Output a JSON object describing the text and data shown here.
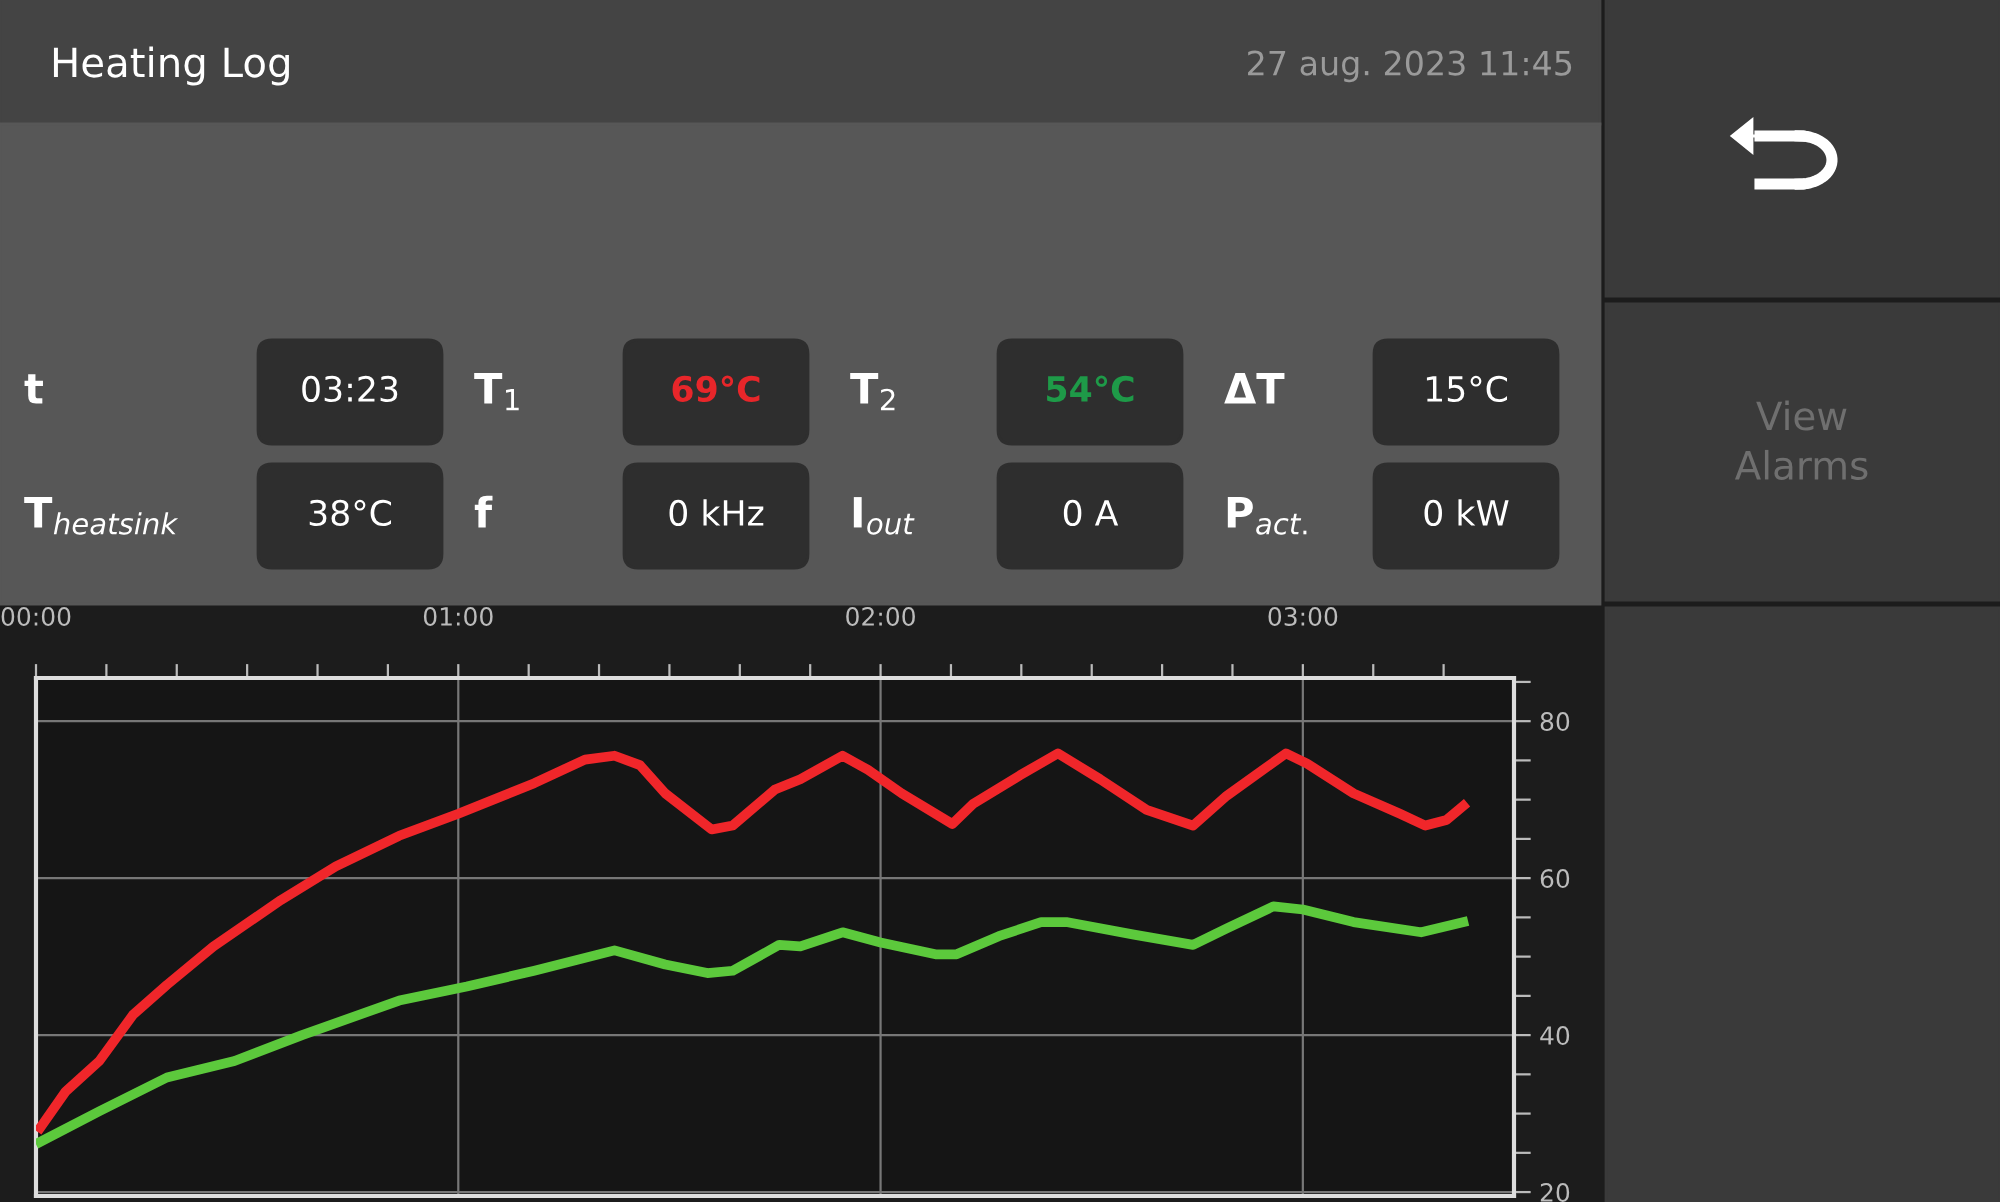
{
  "chart_data": [
    {
      "type": "other",
      "title": "Heating Log",
      "subtitle": "27 aug. 2023 11:45",
      "annotations": [
        "t",
        "03:23",
        "T$_{1}$",
        "69°C",
        "T$_{2}$",
        "54°C",
        "ΔT",
        "15°C",
        "T$_{heatsink}$",
        "38°C",
        "f",
        "0 kHz",
        "I$_{out}$",
        "0 A",
        "P$_{act.}$",
        "0 kW",
        "View Alarms"
      ],
      "colors": [
        "#ffffff",
        "#ffffff",
        "#ffffff",
        "#e8262a",
        "#ffffff",
        "#1e9a48",
        "#ffffff",
        "#ffffff",
        "#ffffff",
        "#ffffff",
        "#ffffff",
        "#ffffff",
        "#ffffff",
        "#ffffff",
        "#ffffff",
        "#ffffff",
        "#6f6f6f"
      ]
    },
    {
      "type": "line",
      "xlim": [
        0,
        3.5
      ],
      "ylim": [
        19.5,
        85.5
      ],
      "grid": true,
      "marker": "none",
      "line_style": "solid",
      "xticks": [
        {
          "value": 0,
          "label": "00:00"
        },
        {
          "value": 0.1667,
          "label": null
        },
        {
          "value": 0.3333,
          "label": null
        },
        {
          "value": 0.5,
          "label": null
        },
        {
          "value": 0.6667,
          "label": null
        },
        {
          "value": 0.8333,
          "label": null
        },
        {
          "value": 1,
          "label": "01:00"
        },
        {
          "value": 1.1667,
          "label": null
        },
        {
          "value": 1.3333,
          "label": null
        },
        {
          "value": 1.5,
          "label": null
        },
        {
          "value": 1.6667,
          "label": null
        },
        {
          "value": 1.8333,
          "label": null
        },
        {
          "value": 2,
          "label": "02:00"
        },
        {
          "value": 2.1667,
          "label": null
        },
        {
          "value": 2.3333,
          "label": null
        },
        {
          "value": 2.5,
          "label": null
        },
        {
          "value": 2.6667,
          "label": null
        },
        {
          "value": 2.8333,
          "label": null
        },
        {
          "value": 3,
          "label": "03:00"
        },
        {
          "value": 3.1667,
          "label": null
        },
        {
          "value": 3.3333,
          "label": null
        }
      ],
      "yticks": [
        20,
        {
          "value": 25,
          "label": null
        },
        {
          "value": 30,
          "label": null
        },
        {
          "value": 35,
          "label": null
        },
        40,
        {
          "value": 45,
          "label": null
        },
        {
          "value": 50,
          "label": null
        },
        {
          "value": 55,
          "label": null
        },
        60,
        {
          "value": 65,
          "label": null
        },
        {
          "value": 70,
          "label": null
        },
        {
          "value": 75,
          "label": null
        },
        80,
        {
          "value": 85,
          "label": null
        }
      ],
      "series": [
        {
          "color": "#f0262a",
          "x": [
            0.01,
            0.07,
            0.15,
            0.23,
            0.31,
            0.42,
            0.58,
            0.71,
            0.86,
            1.0,
            1.18,
            1.3,
            1.37,
            1.43,
            1.49,
            1.6,
            1.65,
            1.75,
            1.81,
            1.91,
            1.97,
            2.05,
            2.17,
            2.22,
            2.33,
            2.42,
            2.52,
            2.63,
            2.74,
            2.82,
            2.96,
            3.01,
            3.12,
            3.23,
            3.29,
            3.34,
            3.38
          ],
          "values": [
            28.2,
            32.8,
            36.7,
            42.6,
            46.4,
            51.3,
            57.2,
            61.5,
            65.4,
            68.2,
            72.1,
            75.1,
            75.6,
            74.4,
            70.8,
            66.2,
            66.7,
            71.3,
            72.6,
            75.6,
            73.8,
            70.8,
            66.9,
            69.5,
            73.1,
            75.9,
            72.6,
            68.7,
            66.7,
            70.5,
            75.9,
            74.6,
            70.8,
            68.2,
            66.7,
            67.4,
            69.2
          ]
        },
        {
          "color": "#5cc93c",
          "x": [
            0.01,
            0.15,
            0.31,
            0.47,
            0.63,
            0.86,
            1.02,
            1.18,
            1.37,
            1.49,
            1.59,
            1.65,
            1.76,
            1.81,
            1.91,
            2.0,
            2.13,
            2.18,
            2.28,
            2.38,
            2.44,
            2.6,
            2.74,
            2.82,
            2.93,
            3.0,
            3.12,
            3.28,
            3.38
          ],
          "values": [
            26.4,
            30.3,
            34.6,
            36.7,
            40.0,
            44.4,
            46.2,
            48.2,
            50.8,
            49.0,
            47.9,
            48.2,
            51.5,
            51.3,
            53.1,
            51.8,
            50.3,
            50.3,
            52.6,
            54.4,
            54.4,
            52.8,
            51.5,
            53.6,
            56.4,
            56.0,
            54.4,
            53.1,
            54.4
          ]
        }
      ]
    }
  ]
}
